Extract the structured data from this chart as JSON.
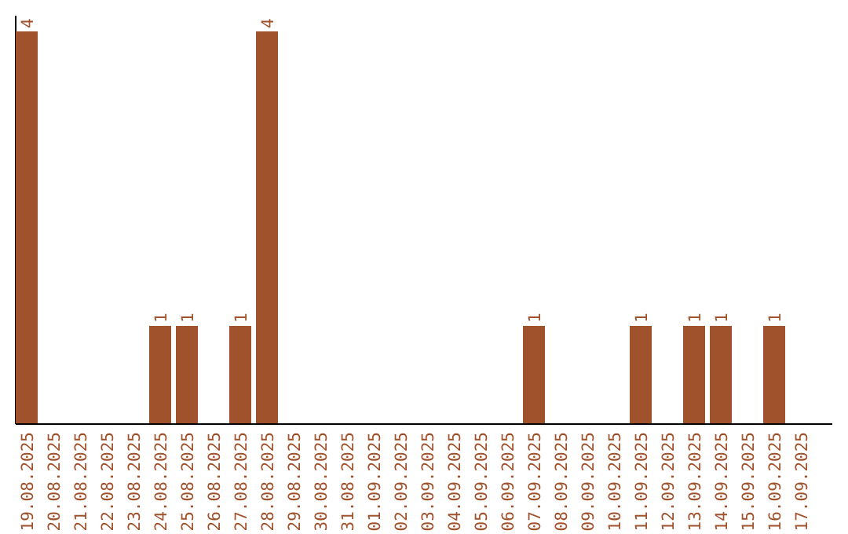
{
  "chart_data": {
    "type": "bar",
    "color": "#a0522d",
    "categories": [
      "19.08.2025",
      "20.08.2025",
      "21.08.2025",
      "22.08.2025",
      "23.08.2025",
      "24.08.2025",
      "25.08.2025",
      "26.08.2025",
      "27.08.2025",
      "28.08.2025",
      "29.08.2025",
      "30.08.2025",
      "31.08.2025",
      "01.09.2025",
      "02.09.2025",
      "03.09.2025",
      "04.09.2025",
      "05.09.2025",
      "06.09.2025",
      "07.09.2025",
      "08.09.2025",
      "09.09.2025",
      "10.09.2025",
      "11.09.2025",
      "12.09.2025",
      "13.09.2025",
      "14.09.2025",
      "15.09.2025",
      "16.09.2025",
      "17.09.2025"
    ],
    "values": [
      4,
      0,
      0,
      0,
      0,
      1,
      1,
      0,
      1,
      4,
      0,
      0,
      0,
      0,
      0,
      0,
      0,
      0,
      0,
      1,
      0,
      0,
      0,
      1,
      0,
      1,
      1,
      0,
      1,
      0
    ],
    "value_labels": [
      "4",
      null,
      null,
      null,
      null,
      "1",
      "1",
      null,
      "1",
      "4",
      null,
      null,
      null,
      null,
      null,
      null,
      null,
      null,
      null,
      "1",
      null,
      null,
      null,
      "1",
      null,
      "1",
      "1",
      null,
      "1",
      null
    ]
  }
}
